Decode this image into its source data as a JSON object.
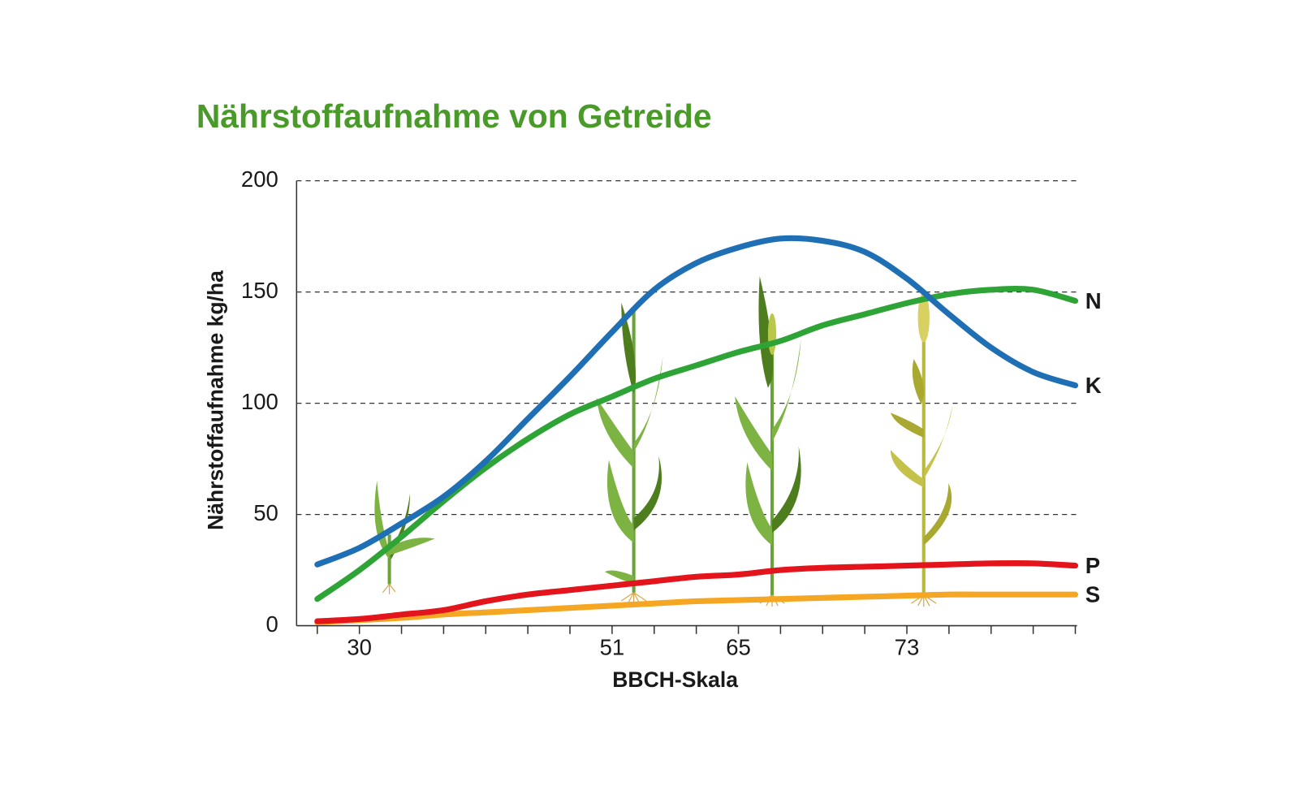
{
  "chart_data": {
    "type": "line",
    "title": "Nährstoffaufnahme von Getreide",
    "xlabel": "BBCH-Skala",
    "ylabel": "Nährstoffaufnahme kg/ha",
    "categories": [
      null,
      "30",
      null,
      null,
      null,
      null,
      null,
      "51",
      null,
      null,
      "65",
      null,
      null,
      null,
      "73",
      null,
      null,
      null,
      null
    ],
    "series": [
      {
        "name": "N",
        "color": "#2ea336",
        "values": [
          12,
          25,
          40,
          56,
          71,
          84,
          95,
          103,
          111,
          117,
          123,
          128,
          135,
          140,
          145,
          149,
          151,
          151,
          146
        ]
      },
      {
        "name": "K",
        "color": "#1f6fb5",
        "values": [
          27.5,
          35,
          46,
          58,
          74,
          93,
          112,
          132,
          151,
          163,
          170,
          174,
          173,
          168,
          156,
          140,
          125,
          114,
          108
        ]
      },
      {
        "name": "P",
        "color": "#e3141b",
        "values": [
          2,
          3,
          5,
          7,
          11,
          14,
          16,
          18,
          20,
          22,
          23,
          25,
          26,
          26.5,
          27,
          27.5,
          28,
          28,
          27
        ]
      },
      {
        "name": "S",
        "color": "#f5a623",
        "values": [
          1.5,
          2.5,
          3.5,
          5,
          6,
          7,
          8,
          9,
          10,
          11,
          11.5,
          12,
          12.5,
          13,
          13.5,
          14,
          14,
          14,
          14
        ]
      }
    ],
    "ylim": [
      0,
      200
    ],
    "yticks": [
      0,
      50,
      100,
      150,
      200
    ],
    "grid": true
  }
}
